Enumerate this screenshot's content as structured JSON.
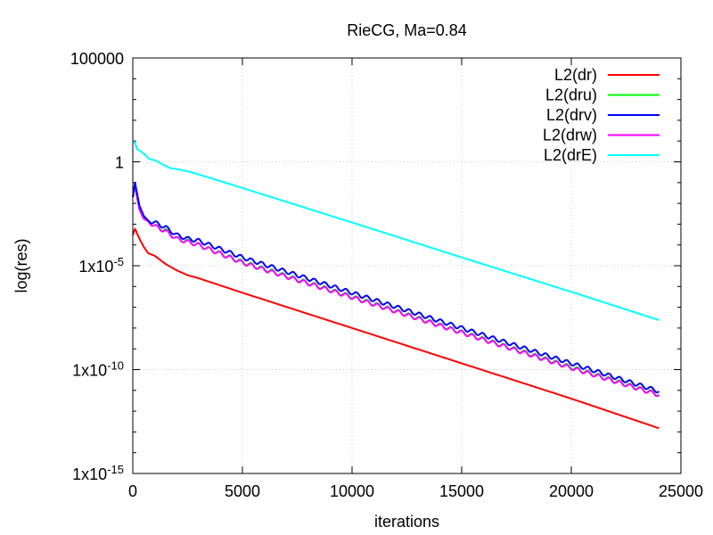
{
  "chart_data": {
    "type": "line",
    "title": "RieCG, Ma=0.84",
    "xlabel": "iterations",
    "ylabel": "log(res)",
    "xlim": [
      0,
      25000
    ],
    "ylim": [
      1e-15,
      100000.0
    ],
    "yscale": "log",
    "grid": true,
    "legend_position": "top-right",
    "x_ticks": [
      {
        "value": 0,
        "label": "0"
      },
      {
        "value": 5000,
        "label": "5000"
      },
      {
        "value": 10000,
        "label": "10000"
      },
      {
        "value": 15000,
        "label": "15000"
      },
      {
        "value": 20000,
        "label": "20000"
      },
      {
        "value": 25000,
        "label": "25000"
      }
    ],
    "y_ticks": [
      {
        "value": 100000,
        "label": "100000",
        "base": "100000",
        "exp": ""
      },
      {
        "value": 1,
        "label": "1",
        "base": "1",
        "exp": ""
      },
      {
        "value": 1e-05,
        "label": "1x10-5",
        "base": "1x10",
        "exp": "-5"
      },
      {
        "value": 1e-10,
        "label": "1x10-10",
        "base": "1x10",
        "exp": "-10"
      },
      {
        "value": 1e-15,
        "label": "1x10-15",
        "base": "1x10",
        "exp": "-15"
      }
    ],
    "series": [
      {
        "name": "L2(dr)",
        "color": "#ff0000",
        "x": [
          0,
          100,
          300,
          500,
          700,
          1000,
          1500,
          2000,
          2500,
          3000,
          5000,
          10000,
          15000,
          20000,
          24000
        ],
        "y": [
          0.0003,
          0.0006,
          0.0002,
          8e-05,
          4e-05,
          3e-05,
          1.2e-05,
          6e-06,
          3.5e-06,
          2.5e-06,
          5e-07,
          1e-08,
          2e-10,
          4e-12,
          1.5e-13
        ],
        "oscillation": 0
      },
      {
        "name": "L2(dru)",
        "color": "#00ff00",
        "x": [
          0,
          100,
          300,
          500,
          700,
          1000,
          1500,
          2000,
          2500,
          3000,
          5000,
          10000,
          15000,
          20000,
          24000
        ],
        "y": [
          0.02,
          0.08,
          0.006,
          0.002,
          0.0015,
          0.0008,
          0.0005,
          0.0002,
          0.00015,
          0.0001,
          1.5e-05,
          3.2e-07,
          6.3e-09,
          1.3e-10,
          6.3e-12
        ],
        "oscillation": 0.18
      },
      {
        "name": "L2(drv)",
        "color": "#0000ff",
        "x": [
          0,
          100,
          300,
          500,
          700,
          1000,
          1500,
          2000,
          2500,
          3000,
          5000,
          10000,
          15000,
          20000,
          24000
        ],
        "y": [
          0.02,
          0.1,
          0.008,
          0.0025,
          0.0015,
          0.0012,
          0.0007,
          0.0003,
          0.0002,
          0.00016,
          2.5e-05,
          5e-07,
          1e-08,
          2e-10,
          9e-12
        ],
        "oscillation": 0.18
      },
      {
        "name": "L2(drw)",
        "color": "#ff00ff",
        "x": [
          0,
          100,
          300,
          500,
          700,
          1000,
          1500,
          2000,
          2500,
          3000,
          5000,
          10000,
          15000,
          20000,
          24000
        ],
        "y": [
          0.02,
          0.07,
          0.005,
          0.0018,
          0.0014,
          0.0008,
          0.00045,
          0.0002,
          0.00014,
          0.0001,
          1.4e-05,
          3e-07,
          6e-09,
          1.2e-10,
          6e-12
        ],
        "oscillation": 0.18
      },
      {
        "name": "L2(drE)",
        "color": "#00ffff",
        "x": [
          0,
          100,
          200,
          400,
          600,
          700,
          800,
          1000,
          1300,
          1700,
          2000,
          2500,
          3000,
          5000,
          10000,
          15000,
          20000,
          24000
        ],
        "y": [
          10,
          8,
          4,
          3,
          2,
          1.5,
          1.3,
          1.2,
          0.8,
          0.5,
          0.45,
          0.35,
          0.25,
          0.055,
          0.0012,
          2.5e-05,
          5.5e-07,
          2.4e-08
        ],
        "oscillation": 0
      }
    ]
  }
}
